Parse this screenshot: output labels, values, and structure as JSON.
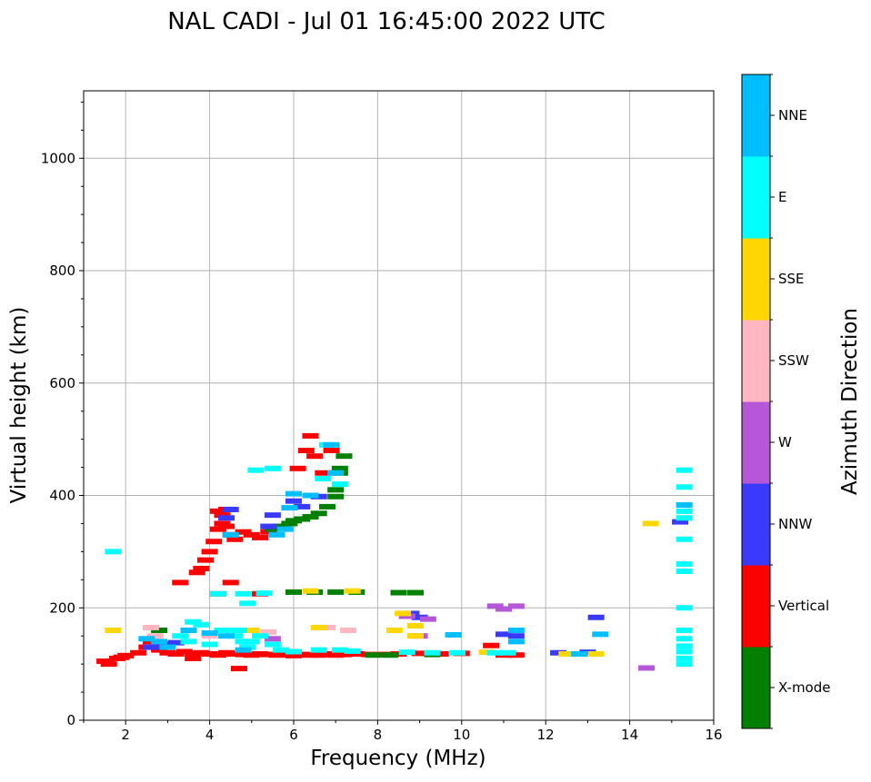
{
  "chart_data": {
    "type": "scatter",
    "title": "NAL CADI - Jul 01 16:45:00 2022 UTC",
    "xlabel": "Frequency (MHz)",
    "ylabel": "Virtual height (km)",
    "xlim": [
      1,
      16
    ],
    "ylim": [
      0,
      1120
    ],
    "xticks": [
      2,
      4,
      6,
      8,
      10,
      12,
      14,
      16
    ],
    "yticks": [
      0,
      200,
      400,
      600,
      800,
      1000
    ],
    "grid": true,
    "colorbar": {
      "label": "Azimuth Direction",
      "categories": [
        {
          "name": "X-mode",
          "color": "#008000"
        },
        {
          "name": "Vertical",
          "color": "#ff0000"
        },
        {
          "name": "NNW",
          "color": "#3a3aff"
        },
        {
          "name": "W",
          "color": "#b557d6"
        },
        {
          "name": "SSW",
          "color": "#ffb6c1"
        },
        {
          "name": "SSE",
          "color": "#ffd700"
        },
        {
          "name": "E",
          "color": "#00ffff"
        },
        {
          "name": "NNE",
          "color": "#00bfff"
        }
      ]
    },
    "series": [
      {
        "name": "Vertical",
        "points": [
          [
            1.5,
            105
          ],
          [
            1.6,
            100
          ],
          [
            1.8,
            110
          ],
          [
            1.9,
            112
          ],
          [
            2.0,
            115
          ],
          [
            2.3,
            120
          ],
          [
            2.5,
            130
          ],
          [
            2.6,
            140
          ],
          [
            2.8,
            125
          ],
          [
            3.0,
            120
          ],
          [
            3.2,
            118
          ],
          [
            3.4,
            122
          ],
          [
            3.6,
            118
          ],
          [
            3.8,
            120
          ],
          [
            4.0,
            118
          ],
          [
            4.2,
            116
          ],
          [
            4.4,
            120
          ],
          [
            4.6,
            118
          ],
          [
            4.8,
            117
          ],
          [
            5.0,
            116
          ],
          [
            5.2,
            118
          ],
          [
            5.4,
            117
          ],
          [
            5.6,
            116
          ],
          [
            5.8,
            117
          ],
          [
            6.0,
            115
          ],
          [
            6.2,
            117
          ],
          [
            6.4,
            116
          ],
          [
            6.6,
            116
          ],
          [
            6.8,
            118
          ],
          [
            7.0,
            116
          ],
          [
            7.2,
            117
          ],
          [
            7.5,
            118
          ],
          [
            7.8,
            117
          ],
          [
            8.2,
            117
          ],
          [
            8.5,
            118
          ],
          [
            9.0,
            119
          ],
          [
            9.5,
            118
          ],
          [
            10.0,
            119
          ],
          [
            11.0,
            116
          ],
          [
            11.3,
            116
          ],
          [
            3.7,
            263
          ],
          [
            3.8,
            270
          ],
          [
            3.9,
            285
          ],
          [
            4.0,
            300
          ],
          [
            4.1,
            318
          ],
          [
            4.2,
            340
          ],
          [
            4.3,
            350
          ],
          [
            4.4,
            345
          ],
          [
            4.5,
            330
          ],
          [
            4.6,
            322
          ],
          [
            4.8,
            335
          ],
          [
            5.0,
            330
          ],
          [
            5.2,
            325
          ],
          [
            5.4,
            335
          ],
          [
            4.3,
            365
          ],
          [
            4.4,
            375
          ],
          [
            4.2,
            372
          ],
          [
            6.1,
            448
          ],
          [
            6.3,
            480
          ],
          [
            6.4,
            506
          ],
          [
            6.5,
            470
          ],
          [
            6.7,
            440
          ],
          [
            6.9,
            480
          ],
          [
            3.3,
            245
          ],
          [
            4.5,
            245
          ],
          [
            5.2,
            225
          ],
          [
            4.2,
            225
          ],
          [
            3.6,
            110
          ],
          [
            4.7,
            92
          ],
          [
            10.7,
            133
          ]
        ]
      },
      {
        "name": "X-mode",
        "points": [
          [
            5.5,
            340
          ],
          [
            5.7,
            345
          ],
          [
            5.9,
            350
          ],
          [
            6.0,
            355
          ],
          [
            6.2,
            358
          ],
          [
            6.4,
            362
          ],
          [
            6.6,
            368
          ],
          [
            6.8,
            380
          ],
          [
            7.0,
            398
          ],
          [
            7.0,
            410
          ],
          [
            7.1,
            440
          ],
          [
            7.2,
            470
          ],
          [
            7.1,
            448
          ],
          [
            6.0,
            228
          ],
          [
            6.5,
            228
          ],
          [
            7.0,
            228
          ],
          [
            7.5,
            228
          ],
          [
            8.5,
            227
          ],
          [
            8.9,
            227
          ],
          [
            7.9,
            116
          ],
          [
            8.3,
            116
          ],
          [
            9.3,
            117
          ],
          [
            2.8,
            160
          ]
        ]
      },
      {
        "name": "NNW",
        "points": [
          [
            2.6,
            130
          ],
          [
            2.9,
            135
          ],
          [
            3.2,
            138
          ],
          [
            4.4,
            360
          ],
          [
            4.5,
            375
          ],
          [
            5.4,
            345
          ],
          [
            5.5,
            365
          ],
          [
            6.0,
            390
          ],
          [
            6.2,
            380
          ],
          [
            6.6,
            398
          ],
          [
            9.0,
            183
          ],
          [
            11.0,
            153
          ],
          [
            11.3,
            150
          ],
          [
            12.3,
            120
          ],
          [
            13.0,
            121
          ],
          [
            13.2,
            183
          ],
          [
            15.2,
            353
          ],
          [
            8.8,
            190
          ]
        ]
      },
      {
        "name": "W",
        "points": [
          [
            9.2,
            180
          ],
          [
            9.0,
            150
          ],
          [
            10.8,
            203
          ],
          [
            11.0,
            198
          ],
          [
            11.3,
            203
          ],
          [
            14.4,
            93
          ],
          [
            5.5,
            145
          ],
          [
            8.7,
            185
          ]
        ]
      },
      {
        "name": "SSW",
        "points": [
          [
            2.6,
            165
          ],
          [
            6.8,
            165
          ],
          [
            7.3,
            160
          ],
          [
            2.7,
            150
          ],
          [
            4.0,
            150
          ],
          [
            5.4,
            157
          ]
        ]
      },
      {
        "name": "SSE",
        "points": [
          [
            1.7,
            160
          ],
          [
            6.6,
            165
          ],
          [
            8.4,
            160
          ],
          [
            8.9,
            168
          ],
          [
            8.9,
            150
          ],
          [
            8.6,
            190
          ],
          [
            12.5,
            118
          ],
          [
            13.2,
            118
          ],
          [
            14.5,
            350
          ],
          [
            5.0,
            160
          ],
          [
            10.6,
            121
          ],
          [
            6.4,
            230
          ],
          [
            7.4,
            230
          ]
        ]
      },
      {
        "name": "E",
        "points": [
          [
            1.7,
            300
          ],
          [
            3.6,
            175
          ],
          [
            3.8,
            170
          ],
          [
            4.3,
            160
          ],
          [
            4.6,
            150
          ],
          [
            4.8,
            140
          ],
          [
            4.9,
            130
          ],
          [
            5.0,
            140
          ],
          [
            4.9,
            208
          ],
          [
            5.2,
            150
          ],
          [
            5.5,
            135
          ],
          [
            5.7,
            125
          ],
          [
            6.0,
            122
          ],
          [
            6.6,
            125
          ],
          [
            7.1,
            125
          ],
          [
            7.4,
            123
          ],
          [
            8.7,
            121
          ],
          [
            9.3,
            120
          ],
          [
            9.9,
            120
          ],
          [
            10.8,
            120
          ],
          [
            11.1,
            120
          ],
          [
            15.3,
            100
          ],
          [
            15.3,
            110
          ],
          [
            15.3,
            122
          ],
          [
            15.3,
            132
          ],
          [
            15.3,
            145
          ],
          [
            15.3,
            160
          ],
          [
            15.3,
            200
          ],
          [
            15.3,
            265
          ],
          [
            15.3,
            278
          ],
          [
            15.3,
            322
          ],
          [
            15.3,
            360
          ],
          [
            15.3,
            372
          ],
          [
            15.3,
            383
          ],
          [
            15.3,
            415
          ],
          [
            15.3,
            445
          ],
          [
            5.1,
            445
          ],
          [
            5.5,
            448
          ],
          [
            6.8,
            490
          ],
          [
            7.1,
            420
          ],
          [
            6.7,
            430
          ],
          [
            4.7,
            160
          ],
          [
            4.2,
            225
          ],
          [
            4.8,
            225
          ],
          [
            5.3,
            226
          ],
          [
            3.3,
            150
          ],
          [
            4.0,
            135
          ],
          [
            3.5,
            140
          ]
        ]
      },
      {
        "name": "NNE",
        "points": [
          [
            2.5,
            145
          ],
          [
            2.8,
            140
          ],
          [
            3.0,
            130
          ],
          [
            3.5,
            160
          ],
          [
            4.0,
            155
          ],
          [
            4.4,
            150
          ],
          [
            4.8,
            125
          ],
          [
            5.6,
            330
          ],
          [
            5.9,
            378
          ],
          [
            6.0,
            403
          ],
          [
            6.9,
            490
          ],
          [
            7.0,
            440
          ],
          [
            9.8,
            152
          ],
          [
            11.3,
            140
          ],
          [
            11.3,
            160
          ],
          [
            12.8,
            118
          ],
          [
            13.3,
            153
          ],
          [
            15.3,
            383
          ],
          [
            5.8,
            340
          ],
          [
            6.4,
            400
          ],
          [
            4.5,
            330
          ]
        ]
      }
    ]
  }
}
